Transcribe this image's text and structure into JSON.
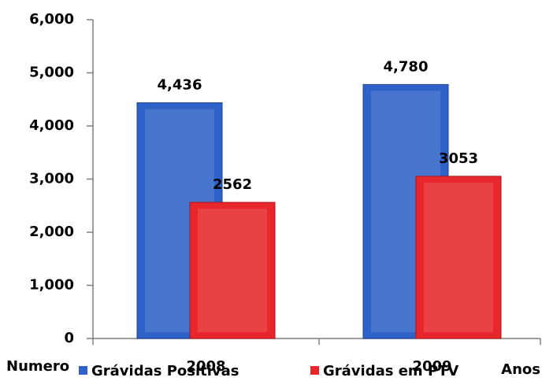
{
  "chart_data": {
    "type": "bar",
    "categories": [
      "2008",
      "2009"
    ],
    "series": [
      {
        "name": "Grávidas Positivas",
        "color": "#2f62c8",
        "values": [
          4436,
          4780
        ],
        "value_labels": [
          "4,436",
          "4,780"
        ]
      },
      {
        "name": "Grávidas em PTV",
        "color": "#e8272c",
        "values": [
          2562,
          3053
        ],
        "value_labels": [
          "2562",
          "3053"
        ]
      }
    ],
    "ylim": [
      0,
      6000
    ],
    "yticks": [
      0,
      {
        "value": 1000,
        "label": "1,000"
      },
      {
        "value": 2000,
        "label": "2,000"
      },
      {
        "value": 3000,
        "label": "3,000"
      },
      {
        "value": 4000,
        "label": "4,000"
      },
      {
        "value": 5000,
        "label": "5,000"
      },
      {
        "value": 6000,
        "label": "6,000"
      }
    ],
    "y_label": "Numero",
    "x_label": "Anos",
    "legend": "bottom"
  }
}
